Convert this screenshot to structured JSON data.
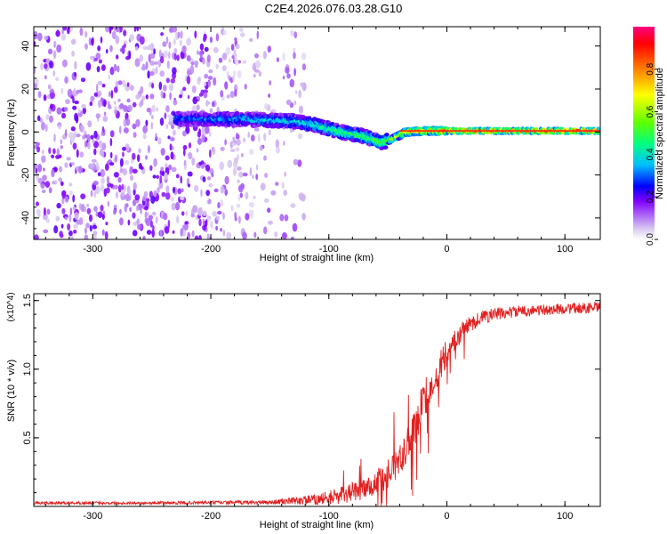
{
  "title": "C2E4.2026.076.03.28.G10",
  "chart_data": [
    {
      "type": "heatmap",
      "xlabel": "Height of straight line (km)",
      "ylabel": "Frequency (Hz)",
      "xlim": [
        -350,
        130
      ],
      "ylim": [
        -50,
        49
      ],
      "xticks": [
        -300,
        -200,
        -100,
        0,
        100
      ],
      "yticks": [
        -40,
        -20,
        0,
        20,
        40
      ],
      "grid": false,
      "colorbar": {
        "label": "Normalized spectral amplitude",
        "range": [
          0,
          1
        ],
        "ticks": [
          0.0,
          0.2,
          0.4,
          0.6,
          0.8
        ],
        "tick_labels": [
          "0.0",
          "0.2",
          "0.4",
          "0.6",
          "0.8"
        ],
        "colormap": [
          "#ffffff",
          "#d8c8f0",
          "#8000ff",
          "#0000ff",
          "#00c0ff",
          "#00ff80",
          "#60ff00",
          "#ffff00",
          "#ff8000",
          "#ff0000",
          "#ff0080"
        ]
      },
      "features": {
        "noise_region_x": [
          -350,
          -120
        ],
        "signal_track": {
          "x": [
            -220,
            -180,
            -130,
            -110,
            -90,
            -70,
            -55,
            -45,
            -35,
            -20,
            0,
            130
          ],
          "frequency": [
            6,
            6,
            5,
            3,
            0,
            -2,
            -5,
            -3,
            0,
            0.5,
            0.5,
            0.5
          ],
          "peak_amplitude": [
            0.3,
            0.35,
            0.4,
            0.45,
            0.5,
            0.5,
            0.55,
            0.6,
            0.8,
            0.85,
            0.9,
            0.9
          ]
        }
      }
    },
    {
      "type": "line",
      "xlabel": "Height of straight line (km)",
      "ylabel": "SNR (10 * v/v)",
      "y_multiplier": "(x10^4)",
      "xlim": [
        -350,
        130
      ],
      "ylim": [
        0,
        1.55
      ],
      "xticks": [
        -300,
        -200,
        -100,
        0,
        100
      ],
      "yticks": [
        0.5,
        1.0,
        1.5
      ],
      "ytick_labels": [
        "0.5",
        "1.0",
        "1.5"
      ],
      "grid": false,
      "series": [
        {
          "name": "SNR",
          "color": "#e02020",
          "x": [
            -350,
            -250,
            -150,
            -110,
            -90,
            -70,
            -60,
            -50,
            -40,
            -30,
            -20,
            -10,
            0,
            10,
            20,
            30,
            40,
            60,
            80,
            100,
            130
          ],
          "mean": [
            0.025,
            0.025,
            0.03,
            0.05,
            0.08,
            0.13,
            0.17,
            0.25,
            0.37,
            0.52,
            0.75,
            0.95,
            1.12,
            1.25,
            1.33,
            1.38,
            1.4,
            1.42,
            1.43,
            1.44,
            1.45
          ],
          "noise": [
            0.01,
            0.01,
            0.015,
            0.04,
            0.06,
            0.08,
            0.1,
            0.12,
            0.14,
            0.15,
            0.15,
            0.12,
            0.1,
            0.08,
            0.06,
            0.05,
            0.05,
            0.04,
            0.04,
            0.04,
            0.04
          ]
        }
      ]
    }
  ]
}
